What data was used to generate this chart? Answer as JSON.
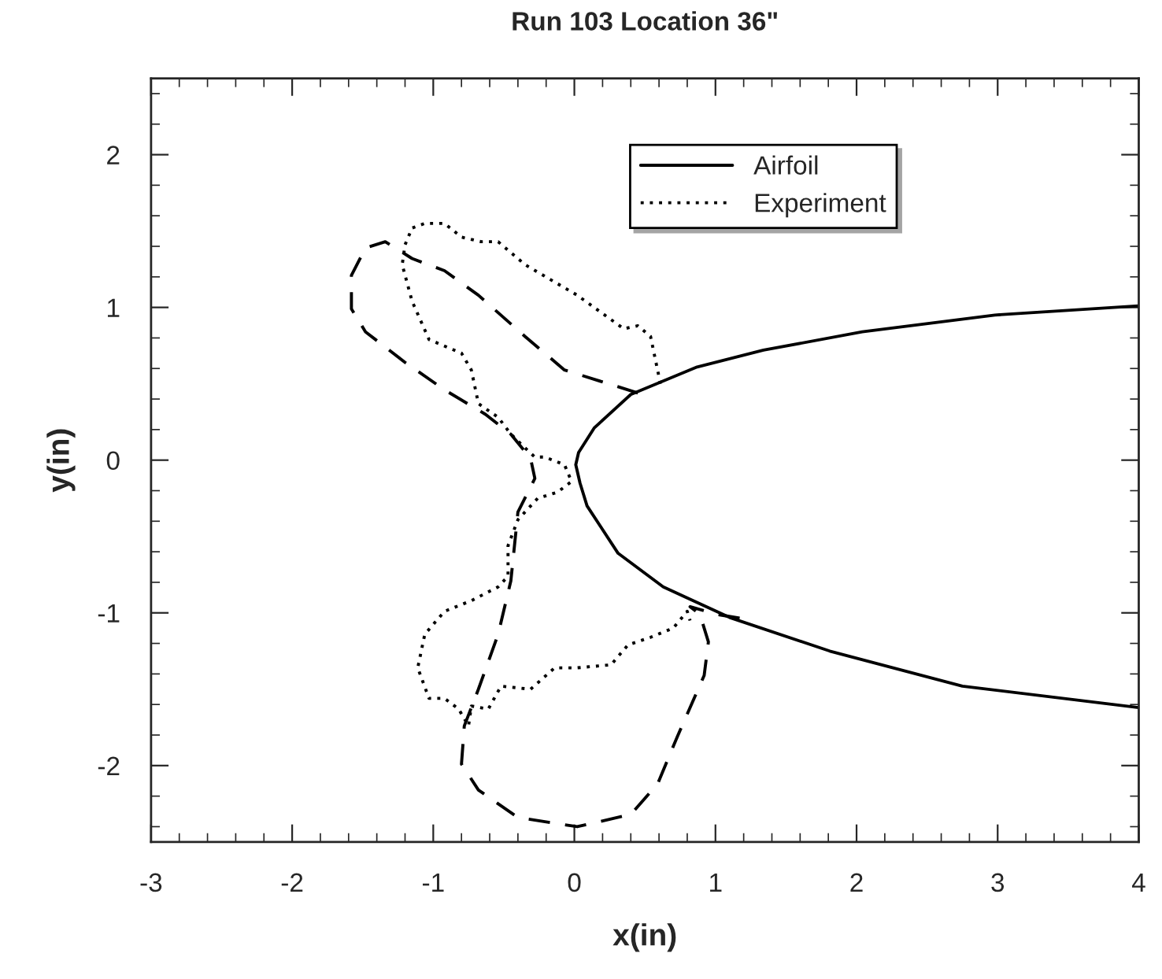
{
  "chart_data": {
    "type": "line",
    "title": "Run 103 Location 36\"",
    "xlabel": "x(in)",
    "ylabel": "y(in)",
    "xlim": [
      -3,
      4
    ],
    "xticks": [
      -3,
      -2,
      -1,
      0,
      1,
      2,
      3,
      4
    ],
    "ylim": [
      -2.5,
      2.5
    ],
    "yticks": [
      -2,
      -1,
      0,
      1,
      2
    ],
    "grid": false,
    "legend": "top",
    "marker": "none",
    "series": [
      {
        "name": "Airfoil",
        "color": "#000000",
        "line_style": "solid",
        "x": [
          4.0,
          2.98,
          2.04,
          1.34,
          0.87,
          0.4,
          0.14,
          0.03,
          0.01,
          0.04,
          0.09,
          0.31,
          0.63,
          1.1,
          1.81,
          2.75,
          4.0
        ],
        "values": [
          1.01,
          0.95,
          0.84,
          0.72,
          0.61,
          0.43,
          0.21,
          0.05,
          -0.03,
          -0.15,
          -0.3,
          -0.61,
          -0.83,
          -1.03,
          -1.25,
          -1.48,
          -1.62
        ]
      },
      {
        "name": "Experiment",
        "color": "#000000",
        "line_style": "dotted",
        "x": [
          0.61,
          0.54,
          0.45,
          0.35,
          0.02,
          -0.35,
          -0.54,
          -0.66,
          -0.8,
          -0.92,
          -1.06,
          -1.15,
          -1.2,
          -1.22,
          -1.15,
          -1.03,
          -0.8,
          -0.73,
          -0.68,
          -0.54,
          -0.45,
          -0.35,
          -0.28,
          -0.21,
          -0.07,
          -0.02,
          -0.12,
          -0.26,
          -0.4,
          -0.47,
          -0.47,
          -0.54,
          -0.73,
          -0.92,
          -1.06,
          -1.11,
          -1.03,
          -0.92,
          -0.82,
          -0.75,
          -0.73,
          -0.61,
          -0.52,
          -0.31,
          -0.14,
          0.02,
          0.26,
          0.38,
          0.54,
          0.7,
          0.8,
          0.82
        ],
        "values": [
          0.5,
          0.81,
          0.88,
          0.86,
          1.08,
          1.28,
          1.43,
          1.43,
          1.46,
          1.55,
          1.55,
          1.52,
          1.41,
          1.28,
          1.04,
          0.79,
          0.7,
          0.59,
          0.37,
          0.28,
          0.17,
          0.08,
          0.02,
          0.02,
          -0.03,
          -0.14,
          -0.21,
          -0.25,
          -0.39,
          -0.56,
          -0.76,
          -0.83,
          -0.92,
          -0.99,
          -1.14,
          -1.36,
          -1.56,
          -1.56,
          -1.63,
          -1.74,
          -1.61,
          -1.63,
          -1.48,
          -1.5,
          -1.36,
          -1.36,
          -1.34,
          -1.21,
          -1.16,
          -1.1,
          -0.99,
          -1.05
        ]
      },
      {
        "color": "#000000",
        "line_style": "dashed",
        "x": [
          0.45,
          -0.07,
          -0.35,
          -0.68,
          -0.92,
          -1.15,
          -1.34,
          -1.48,
          -1.58,
          -1.58,
          -1.48,
          -1.2,
          -0.92,
          -0.63,
          -0.45,
          -0.31,
          -0.28,
          -0.4,
          -0.45,
          -0.54,
          -0.68,
          -0.78,
          -0.8,
          -0.68,
          -0.4,
          0.02,
          0.4,
          0.59,
          0.73,
          0.92,
          0.95,
          0.89,
          0.82,
          1.01,
          1.27
        ],
        "values": [
          0.44,
          0.59,
          0.81,
          1.08,
          1.24,
          1.32,
          1.43,
          1.39,
          1.21,
          0.99,
          0.84,
          0.64,
          0.46,
          0.3,
          0.17,
          0.01,
          -0.12,
          -0.34,
          -0.79,
          -1.14,
          -1.5,
          -1.74,
          -1.99,
          -2.16,
          -2.34,
          -2.4,
          -2.32,
          -2.12,
          -1.81,
          -1.41,
          -1.19,
          -1.01,
          -0.96,
          -1.01,
          -1.05
        ]
      }
    ]
  }
}
